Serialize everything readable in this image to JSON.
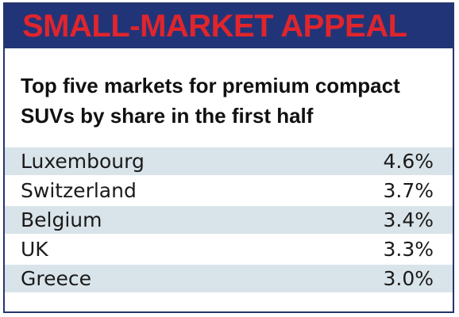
{
  "header": {
    "title": "SMALL-MARKET APPEAL"
  },
  "colors": {
    "header_bg": "#223478",
    "header_text": "#e0252c",
    "row_shade": "#d9e4ea"
  },
  "chart_data": {
    "type": "table",
    "title": "SMALL-MARKET APPEAL",
    "subtitle": "Top five markets for premium compact SUVs by share in the first half",
    "columns": [
      "",
      ""
    ],
    "rows": [
      {
        "label": "Luxembourg",
        "value": 4.6,
        "display": "4.6%"
      },
      {
        "label": "Switzerland",
        "value": 3.7,
        "display": "3.7%"
      },
      {
        "label": "Belgium",
        "value": 3.4,
        "display": "3.4%"
      },
      {
        "label": "UK",
        "value": 3.3,
        "display": "3.3%"
      },
      {
        "label": "Greece",
        "value": 3.0,
        "display": "3.0%"
      }
    ]
  }
}
